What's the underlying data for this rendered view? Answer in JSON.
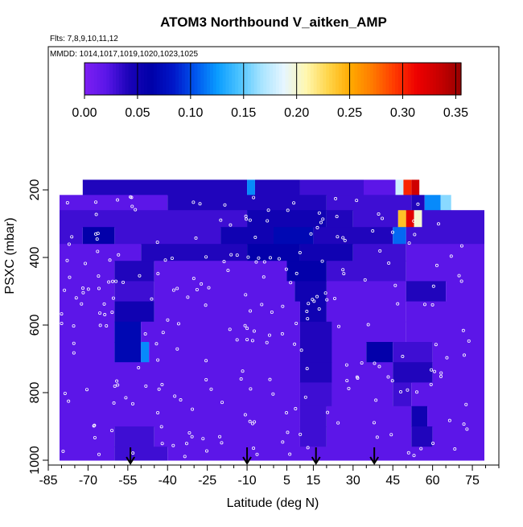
{
  "chart_data": {
    "type": "heatmap",
    "title": "ATOM3 Northbound V_aitken_AMP",
    "flights_note": "Flts: 7,8,9,10,11,12",
    "dates_note": "MMDD: 1014,1017,1019,1020,1023,1025",
    "xlabel": "Latitude (deg N)",
    "ylabel": "PSXC (mbar)",
    "xlim": [
      -85,
      85
    ],
    "ylim": [
      1000,
      140
    ],
    "x_ticks": [
      -85,
      -70,
      -55,
      -40,
      -25,
      -10,
      5,
      15,
      30,
      45,
      60,
      75
    ],
    "x_tick_labels": [
      "-85",
      "-70",
      "-55",
      "-40",
      "-25",
      "-10",
      "5",
      "15",
      "30",
      "45",
      "60",
      "75"
    ],
    "y_ticks": [
      200,
      400,
      600,
      800,
      1000
    ],
    "y_tick_labels": [
      "200",
      "400",
      "600",
      "800",
      "1000"
    ],
    "colorbar": {
      "range": [
        0,
        0.355
      ],
      "ticks": [
        0.0,
        0.05,
        0.1,
        0.15,
        0.2,
        0.25,
        0.3,
        0.35
      ],
      "tick_labels": [
        "0.00",
        "0.05",
        "0.10",
        "0.15",
        "0.20",
        "0.25",
        "0.30",
        "0.35"
      ],
      "colors": [
        "#7e1ff3",
        "#5a16e8",
        "#1b03b8",
        "#0000a8",
        "#0016c8",
        "#0055ee",
        "#0a9cff",
        "#4dc4ff",
        "#a8e4ff",
        "#e6f6ff",
        "#fff7b0",
        "#ffd54a",
        "#ffaa00",
        "#ff7a00",
        "#ff3a00",
        "#ee0000",
        "#c80000",
        "#960000"
      ]
    },
    "arrows_latitude": [
      -54,
      -10,
      16,
      38
    ],
    "grid": false,
    "legend": "colorbar-top",
    "cell_rows": [
      {
        "p": [
          170,
          215
        ],
        "cells": [
          [
            -72,
            -10,
            0.04
          ],
          [
            -10,
            -7,
            0.12
          ],
          [
            -7,
            10,
            0.04
          ],
          [
            10,
            34,
            0.03
          ],
          [
            34,
            46,
            0.02
          ],
          [
            46,
            49,
            0.18
          ],
          [
            49,
            52,
            0.3
          ],
          [
            52,
            55,
            0.33
          ]
        ]
      },
      {
        "p": [
          215,
          260
        ],
        "cells": [
          [
            -85,
            -40,
            0.02
          ],
          [
            -40,
            20,
            0.04
          ],
          [
            20,
            34,
            0.03
          ],
          [
            34,
            52,
            0.03
          ],
          [
            52,
            57,
            0.04
          ],
          [
            57,
            63,
            0.12
          ],
          [
            63,
            67,
            0.16
          ]
        ]
      },
      {
        "p": [
          260,
          310
        ],
        "cells": [
          [
            -85,
            -10,
            0.03
          ],
          [
            -10,
            20,
            0.05
          ],
          [
            20,
            30,
            0.04
          ],
          [
            30,
            47,
            0.03
          ],
          [
            47,
            50,
            0.24
          ],
          [
            50,
            53,
            0.32
          ],
          [
            53,
            56,
            0.2
          ],
          [
            56,
            85,
            0.03
          ]
        ]
      },
      {
        "p": [
          310,
          360
        ],
        "cells": [
          [
            -85,
            -72,
            0.03
          ],
          [
            -72,
            -60,
            0.06
          ],
          [
            -60,
            -20,
            0.03
          ],
          [
            -20,
            0,
            0.05
          ],
          [
            0,
            15,
            0.07
          ],
          [
            15,
            45,
            0.04
          ],
          [
            45,
            50,
            0.11
          ],
          [
            50,
            85,
            0.03
          ]
        ]
      },
      {
        "p": [
          360,
          410
        ],
        "cells": [
          [
            -85,
            -50,
            0.02
          ],
          [
            -50,
            -10,
            0.04
          ],
          [
            -10,
            10,
            0.06
          ],
          [
            10,
            30,
            0.05
          ],
          [
            30,
            50,
            0.03
          ],
          [
            50,
            85,
            0.02
          ]
        ]
      },
      {
        "p": [
          410,
          470
        ],
        "cells": [
          [
            -85,
            -60,
            0.02
          ],
          [
            -60,
            -45,
            0.04
          ],
          [
            -45,
            5,
            0.02
          ],
          [
            5,
            20,
            0.06
          ],
          [
            20,
            50,
            0.03
          ],
          [
            50,
            85,
            0.02
          ]
        ]
      },
      {
        "p": [
          470,
          530
        ],
        "cells": [
          [
            -85,
            -60,
            0.02
          ],
          [
            -60,
            -45,
            0.03
          ],
          [
            -45,
            8,
            0.02
          ],
          [
            8,
            20,
            0.05
          ],
          [
            20,
            50,
            0.02
          ],
          [
            50,
            65,
            0.04
          ],
          [
            65,
            85,
            0.02
          ]
        ]
      },
      {
        "p": [
          530,
          590
        ],
        "cells": [
          [
            -85,
            -60,
            0.02
          ],
          [
            -60,
            -45,
            0.05
          ],
          [
            -45,
            10,
            0.02
          ],
          [
            10,
            20,
            0.05
          ],
          [
            20,
            50,
            0.02
          ],
          [
            50,
            85,
            0.02
          ]
        ]
      },
      {
        "p": [
          590,
          650
        ],
        "cells": [
          [
            -85,
            -60,
            0.02
          ],
          [
            -60,
            -50,
            0.07
          ],
          [
            -50,
            10,
            0.02
          ],
          [
            10,
            22,
            0.04
          ],
          [
            22,
            50,
            0.02
          ],
          [
            50,
            85,
            0.02
          ]
        ]
      },
      {
        "p": [
          650,
          710
        ],
        "cells": [
          [
            -85,
            -60,
            0.02
          ],
          [
            -60,
            -50,
            0.07
          ],
          [
            -50,
            -47,
            0.12
          ],
          [
            -47,
            10,
            0.02
          ],
          [
            10,
            22,
            0.04
          ],
          [
            22,
            35,
            0.02
          ],
          [
            35,
            45,
            0.06
          ],
          [
            45,
            60,
            0.03
          ],
          [
            60,
            85,
            0.02
          ]
        ]
      },
      {
        "p": [
          710,
          770
        ],
        "cells": [
          [
            -85,
            10,
            0.02
          ],
          [
            10,
            22,
            0.04
          ],
          [
            22,
            45,
            0.02
          ],
          [
            45,
            60,
            0.04
          ],
          [
            60,
            85,
            0.02
          ]
        ]
      },
      {
        "p": [
          770,
          840
        ],
        "cells": [
          [
            -85,
            10,
            0.02
          ],
          [
            10,
            22,
            0.03
          ],
          [
            22,
            45,
            0.02
          ],
          [
            45,
            52,
            0.03
          ],
          [
            52,
            85,
            0.02
          ]
        ]
      },
      {
        "p": [
          840,
          900
        ],
        "cells": [
          [
            -85,
            10,
            0.02
          ],
          [
            10,
            20,
            0.03
          ],
          [
            20,
            52,
            0.02
          ],
          [
            52,
            58,
            0.05
          ],
          [
            58,
            85,
            0.02
          ]
        ]
      },
      {
        "p": [
          900,
          960
        ],
        "cells": [
          [
            -85,
            -60,
            0.02
          ],
          [
            -60,
            -45,
            0.03
          ],
          [
            -45,
            10,
            0.02
          ],
          [
            10,
            20,
            0.03
          ],
          [
            20,
            52,
            0.02
          ],
          [
            52,
            60,
            0.04
          ],
          [
            60,
            85,
            0.02
          ]
        ]
      },
      {
        "p": [
          960,
          1000
        ],
        "cells": [
          [
            -85,
            -60,
            0.02
          ],
          [
            -60,
            -40,
            0.03
          ],
          [
            -40,
            85,
            0.02
          ]
        ]
      }
    ]
  }
}
